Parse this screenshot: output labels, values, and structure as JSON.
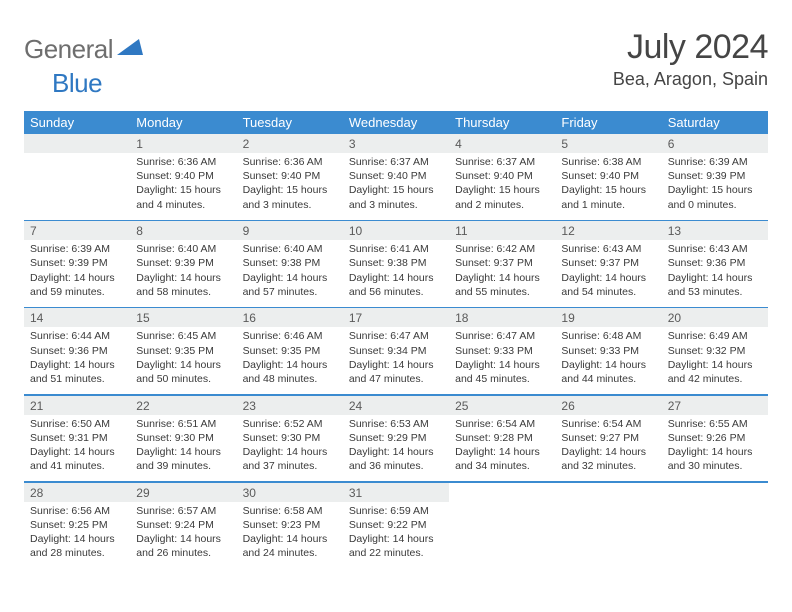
{
  "brand": {
    "part1": "General",
    "part2": "Blue"
  },
  "title": {
    "month": "July 2024",
    "location": "Bea, Aragon, Spain"
  },
  "colors": {
    "accent": "#3b8bd0",
    "numrow_bg": "#eceeee",
    "text": "#3a3a3a",
    "logo_gray": "#6e6e6e",
    "logo_blue": "#2f78c2"
  },
  "day_headers": [
    "Sunday",
    "Monday",
    "Tuesday",
    "Wednesday",
    "Thursday",
    "Friday",
    "Saturday"
  ],
  "weeks": [
    {
      "nums": [
        "",
        "1",
        "2",
        "3",
        "4",
        "5",
        "6"
      ],
      "cells": [
        "",
        "Sunrise: 6:36 AM\nSunset: 9:40 PM\nDaylight: 15 hours and 4 minutes.",
        "Sunrise: 6:36 AM\nSunset: 9:40 PM\nDaylight: 15 hours and 3 minutes.",
        "Sunrise: 6:37 AM\nSunset: 9:40 PM\nDaylight: 15 hours and 3 minutes.",
        "Sunrise: 6:37 AM\nSunset: 9:40 PM\nDaylight: 15 hours and 2 minutes.",
        "Sunrise: 6:38 AM\nSunset: 9:40 PM\nDaylight: 15 hours and 1 minute.",
        "Sunrise: 6:39 AM\nSunset: 9:39 PM\nDaylight: 15 hours and 0 minutes."
      ]
    },
    {
      "nums": [
        "7",
        "8",
        "9",
        "10",
        "11",
        "12",
        "13"
      ],
      "cells": [
        "Sunrise: 6:39 AM\nSunset: 9:39 PM\nDaylight: 14 hours and 59 minutes.",
        "Sunrise: 6:40 AM\nSunset: 9:39 PM\nDaylight: 14 hours and 58 minutes.",
        "Sunrise: 6:40 AM\nSunset: 9:38 PM\nDaylight: 14 hours and 57 minutes.",
        "Sunrise: 6:41 AM\nSunset: 9:38 PM\nDaylight: 14 hours and 56 minutes.",
        "Sunrise: 6:42 AM\nSunset: 9:37 PM\nDaylight: 14 hours and 55 minutes.",
        "Sunrise: 6:43 AM\nSunset: 9:37 PM\nDaylight: 14 hours and 54 minutes.",
        "Sunrise: 6:43 AM\nSunset: 9:36 PM\nDaylight: 14 hours and 53 minutes."
      ]
    },
    {
      "nums": [
        "14",
        "15",
        "16",
        "17",
        "18",
        "19",
        "20"
      ],
      "cells": [
        "Sunrise: 6:44 AM\nSunset: 9:36 PM\nDaylight: 14 hours and 51 minutes.",
        "Sunrise: 6:45 AM\nSunset: 9:35 PM\nDaylight: 14 hours and 50 minutes.",
        "Sunrise: 6:46 AM\nSunset: 9:35 PM\nDaylight: 14 hours and 48 minutes.",
        "Sunrise: 6:47 AM\nSunset: 9:34 PM\nDaylight: 14 hours and 47 minutes.",
        "Sunrise: 6:47 AM\nSunset: 9:33 PM\nDaylight: 14 hours and 45 minutes.",
        "Sunrise: 6:48 AM\nSunset: 9:33 PM\nDaylight: 14 hours and 44 minutes.",
        "Sunrise: 6:49 AM\nSunset: 9:32 PM\nDaylight: 14 hours and 42 minutes."
      ]
    },
    {
      "nums": [
        "21",
        "22",
        "23",
        "24",
        "25",
        "26",
        "27"
      ],
      "cells": [
        "Sunrise: 6:50 AM\nSunset: 9:31 PM\nDaylight: 14 hours and 41 minutes.",
        "Sunrise: 6:51 AM\nSunset: 9:30 PM\nDaylight: 14 hours and 39 minutes.",
        "Sunrise: 6:52 AM\nSunset: 9:30 PM\nDaylight: 14 hours and 37 minutes.",
        "Sunrise: 6:53 AM\nSunset: 9:29 PM\nDaylight: 14 hours and 36 minutes.",
        "Sunrise: 6:54 AM\nSunset: 9:28 PM\nDaylight: 14 hours and 34 minutes.",
        "Sunrise: 6:54 AM\nSunset: 9:27 PM\nDaylight: 14 hours and 32 minutes.",
        "Sunrise: 6:55 AM\nSunset: 9:26 PM\nDaylight: 14 hours and 30 minutes."
      ]
    },
    {
      "nums": [
        "28",
        "29",
        "30",
        "31",
        "",
        "",
        ""
      ],
      "cells": [
        "Sunrise: 6:56 AM\nSunset: 9:25 PM\nDaylight: 14 hours and 28 minutes.",
        "Sunrise: 6:57 AM\nSunset: 9:24 PM\nDaylight: 14 hours and 26 minutes.",
        "Sunrise: 6:58 AM\nSunset: 9:23 PM\nDaylight: 14 hours and 24 minutes.",
        "Sunrise: 6:59 AM\nSunset: 9:22 PM\nDaylight: 14 hours and 22 minutes.",
        "",
        "",
        ""
      ]
    }
  ]
}
